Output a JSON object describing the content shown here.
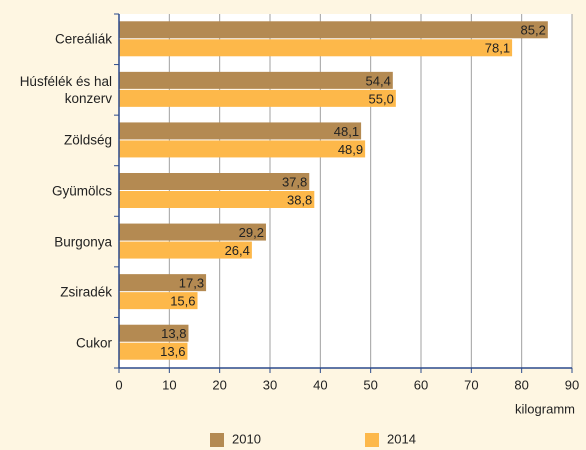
{
  "chart_data": {
    "type": "bar",
    "orientation": "horizontal",
    "categories": [
      "Cereáliák",
      "Húsfélék és hal konzerv",
      "Zöldség",
      "Gyümölcs",
      "Burgonya",
      "Zsiradék",
      "Cukor"
    ],
    "series": [
      {
        "name": "2010",
        "color": "#b48a52",
        "values": [
          85.2,
          54.4,
          48.1,
          37.8,
          29.2,
          17.3,
          13.8
        ],
        "value_labels": [
          "85,2",
          "54,4",
          "48,1",
          "37,8",
          "29,2",
          "17,3",
          "13,8"
        ]
      },
      {
        "name": "2014",
        "color": "#fdb84a",
        "values": [
          78.1,
          55.0,
          48.9,
          38.8,
          26.4,
          15.6,
          13.6
        ],
        "value_labels": [
          "78,1",
          "55,0",
          "48,9",
          "38,8",
          "26,4",
          "15,6",
          "13,6"
        ]
      }
    ],
    "xlim": [
      0,
      90
    ],
    "xticks": [
      0,
      10,
      20,
      30,
      40,
      50,
      60,
      70,
      80,
      90
    ],
    "xlabel": "kilogramm",
    "grid": true,
    "legend": "bottom"
  }
}
